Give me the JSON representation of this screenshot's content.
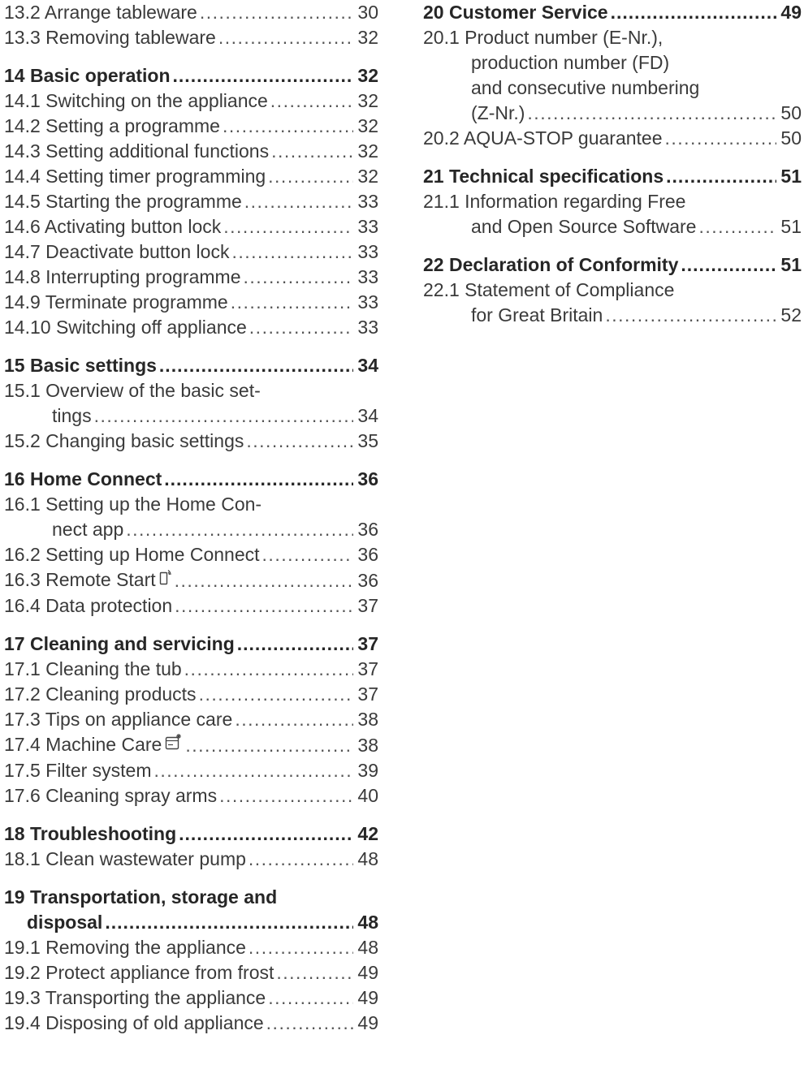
{
  "left": {
    "pre": [
      {
        "label": "13.2 Arrange tableware",
        "page": "30"
      },
      {
        "label": "13.3 Removing tableware",
        "page": "32"
      }
    ],
    "s14": {
      "title": {
        "label": "14 Basic operation",
        "page": "32"
      },
      "items": [
        {
          "label": "14.1 Switching on the appliance",
          "page": "32"
        },
        {
          "label": "14.2 Setting a programme",
          "page": "32"
        },
        {
          "label": "14.3 Setting additional functions",
          "page": "32"
        },
        {
          "label": "14.4 Setting timer programming",
          "page": "32"
        },
        {
          "label": "14.5 Starting the programme",
          "page": "33"
        },
        {
          "label": "14.6 Activating button lock",
          "page": "33"
        },
        {
          "label": "14.7 Deactivate button lock",
          "page": "33"
        },
        {
          "label": "14.8 Interrupting programme",
          "page": "33"
        },
        {
          "label": "14.9 Terminate programme",
          "page": "33"
        },
        {
          "label": "14.10 Switching off appliance",
          "page": "33"
        }
      ]
    },
    "s15": {
      "title": {
        "label": "15 Basic settings",
        "page": "34"
      },
      "i1_line1": "15.1 Overview of the basic set-",
      "i1_line2": "tings",
      "i1_page": "34",
      "i2": {
        "label": "15.2 Changing basic settings",
        "page": "35"
      }
    },
    "s16": {
      "title": {
        "label": "16 Home Connect",
        "page": "36"
      },
      "i1_line1": "16.1 Setting up the Home Con-",
      "i1_line2": "nect app",
      "i1_page": "36",
      "i2": {
        "label": "16.2 Setting up Home Connect",
        "page": "36"
      },
      "i3": {
        "label": "16.3 Remote Start",
        "page": "36"
      },
      "i4": {
        "label": "16.4 Data protection",
        "page": "37"
      }
    },
    "s17": {
      "title": {
        "label": "17 Cleaning and servicing",
        "page": "37"
      },
      "items": [
        {
          "label": "17.1 Cleaning the tub",
          "page": "37"
        },
        {
          "label": "17.2 Cleaning products",
          "page": "37"
        },
        {
          "label": "17.3 Tips on appliance care",
          "page": "38"
        }
      ],
      "i4": {
        "label": "17.4 Machine Care",
        "page": "38"
      },
      "items2": [
        {
          "label": "17.5 Filter system",
          "page": "39"
        },
        {
          "label": "17.6 Cleaning spray arms",
          "page": "40"
        }
      ]
    },
    "s18": {
      "title": {
        "label": "18 Troubleshooting",
        "page": "42"
      },
      "i1": {
        "label": "18.1 Clean wastewater pump",
        "page": "48"
      }
    },
    "s19": {
      "title_line1": "19 Transportation, storage and",
      "title_line2": "disposal",
      "title_page": "48",
      "items": [
        {
          "label": "19.1 Removing the appliance",
          "page": "48"
        },
        {
          "label": "19.2 Protect appliance from frost",
          "page": "49"
        },
        {
          "label": "19.3 Transporting the appliance",
          "page": "49"
        },
        {
          "label": "19.4 Disposing of old appliance",
          "page": "49"
        }
      ]
    }
  },
  "right": {
    "s20": {
      "title": {
        "label": "20 Customer Service",
        "page": "49"
      },
      "i1_line1": "20.1 Product number (E-Nr.),",
      "i1_line2": "production number (FD)",
      "i1_line3": "and consecutive numbering",
      "i1_line4": "(Z-Nr.)",
      "i1_page": "50",
      "i2": {
        "label": "20.2 AQUA-STOP guarantee",
        "page": "50"
      }
    },
    "s21": {
      "title": {
        "label": "21 Technical specifications",
        "page": "51"
      },
      "i1_line1": "21.1 Information regarding Free",
      "i1_line2": "and Open Source Software",
      "i1_page": "51"
    },
    "s22": {
      "title": {
        "label": "22 Declaration of Conformity",
        "page": "51"
      },
      "i1_line1": "22.1 Statement of Compliance",
      "i1_line2": "for Great Britain",
      "i1_page": "52"
    }
  },
  "icons": {
    "remote_start": "remote-start-icon",
    "machine_care": "machine-care-icon"
  }
}
